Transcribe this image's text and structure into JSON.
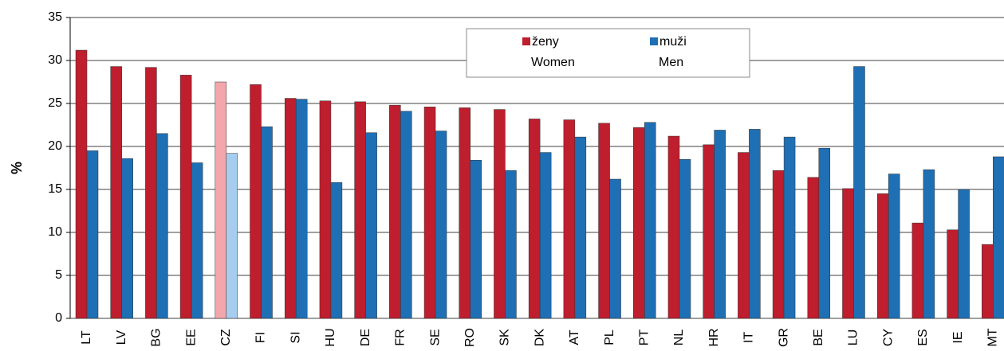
{
  "chart_data": {
    "type": "bar",
    "ylabel": "%",
    "categories": [
      "LT",
      "LV",
      "BG",
      "EE",
      "CZ",
      "FI",
      "SI",
      "HU",
      "DE",
      "FR",
      "SE",
      "RO",
      "SK",
      "DK",
      "AT",
      "PL",
      "PT",
      "NL",
      "HR",
      "IT",
      "GR",
      "BE",
      "LU",
      "CY",
      "ES",
      "IE",
      "MT"
    ],
    "series": [
      {
        "name": "ženy",
        "name_en": "Women",
        "color": "#be1e2d",
        "highlight_color": "#f4a6ad",
        "values": [
          31.2,
          29.3,
          29.2,
          28.3,
          27.5,
          27.2,
          25.6,
          25.3,
          25.2,
          24.8,
          24.6,
          24.5,
          24.3,
          23.2,
          23.1,
          22.7,
          22.2,
          21.2,
          20.2,
          19.3,
          17.2,
          16.4,
          15.1,
          14.5,
          11.1,
          10.3,
          8.6
        ]
      },
      {
        "name": "muži",
        "name_en": "Men",
        "color": "#1f6fb4",
        "highlight_color": "#a6cdee",
        "values": [
          19.5,
          18.6,
          21.5,
          18.1,
          19.2,
          22.3,
          25.5,
          15.8,
          21.6,
          24.1,
          21.8,
          18.4,
          17.2,
          19.3,
          21.1,
          16.2,
          22.8,
          18.5,
          21.9,
          22.0,
          21.1,
          19.8,
          29.3,
          16.8,
          17.3,
          15.0,
          18.8
        ]
      }
    ],
    "highlight_category": "CZ",
    "ylim": [
      0,
      35
    ],
    "yticks": [
      0,
      5,
      10,
      15,
      20,
      25,
      30,
      35
    ],
    "grid": true,
    "legend": "top"
  }
}
